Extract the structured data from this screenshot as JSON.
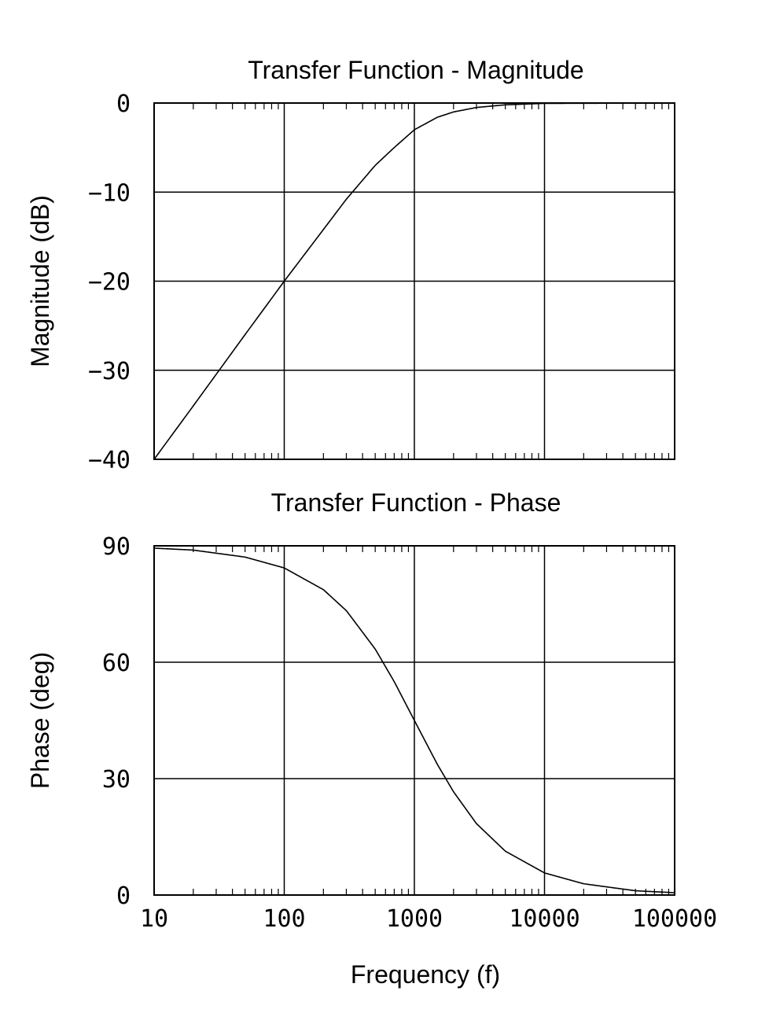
{
  "chart_data": [
    {
      "type": "line",
      "title": "Transfer Function - Magnitude",
      "xlabel": "",
      "ylabel": "Magnitude (dB)",
      "xscale": "log",
      "xlim": [
        10,
        100000
      ],
      "ylim": [
        -40,
        0
      ],
      "xticks": [
        10,
        100,
        1000,
        10000,
        100000
      ],
      "xtick_labels": [],
      "yticks": [
        -40,
        -30,
        -20,
        -10,
        0
      ],
      "ytick_labels": [
        "−40",
        "−30",
        "−20",
        "−10",
        "0"
      ],
      "grid": true,
      "line_color": "#000000",
      "series": [
        {
          "x": [
            10,
            20,
            50,
            100,
            200,
            300,
            500,
            700,
            1000,
            1500,
            2000,
            3000,
            5000,
            10000,
            100000
          ],
          "values": [
            -40.0,
            -34.0,
            -26.0,
            -20.0,
            -14.2,
            -10.8,
            -7.0,
            -5.0,
            -3.0,
            -1.6,
            -1.0,
            -0.5,
            -0.2,
            -0.04,
            0.0
          ]
        }
      ]
    },
    {
      "type": "line",
      "title": "Transfer Function - Phase",
      "xlabel": "Frequency (f)",
      "ylabel": "Phase (deg)",
      "xscale": "log",
      "xlim": [
        10,
        100000
      ],
      "ylim": [
        0,
        90
      ],
      "xticks": [
        10,
        100,
        1000,
        10000,
        100000
      ],
      "xtick_labels": [
        "10",
        "100",
        "1000",
        "10000",
        "100000"
      ],
      "yticks": [
        0,
        30,
        60,
        90
      ],
      "ytick_labels": [
        "0",
        "30",
        "60",
        "90"
      ],
      "grid": true,
      "line_color": "#000000",
      "series": [
        {
          "x": [
            10,
            20,
            50,
            100,
            200,
            300,
            500,
            700,
            1000,
            1500,
            2000,
            3000,
            5000,
            10000,
            20000,
            50000,
            100000
          ],
          "values": [
            89.4,
            88.9,
            87.1,
            84.3,
            78.7,
            73.3,
            63.4,
            55.0,
            45.0,
            33.7,
            26.6,
            18.4,
            11.3,
            5.7,
            2.9,
            1.1,
            0.6
          ]
        }
      ]
    }
  ]
}
